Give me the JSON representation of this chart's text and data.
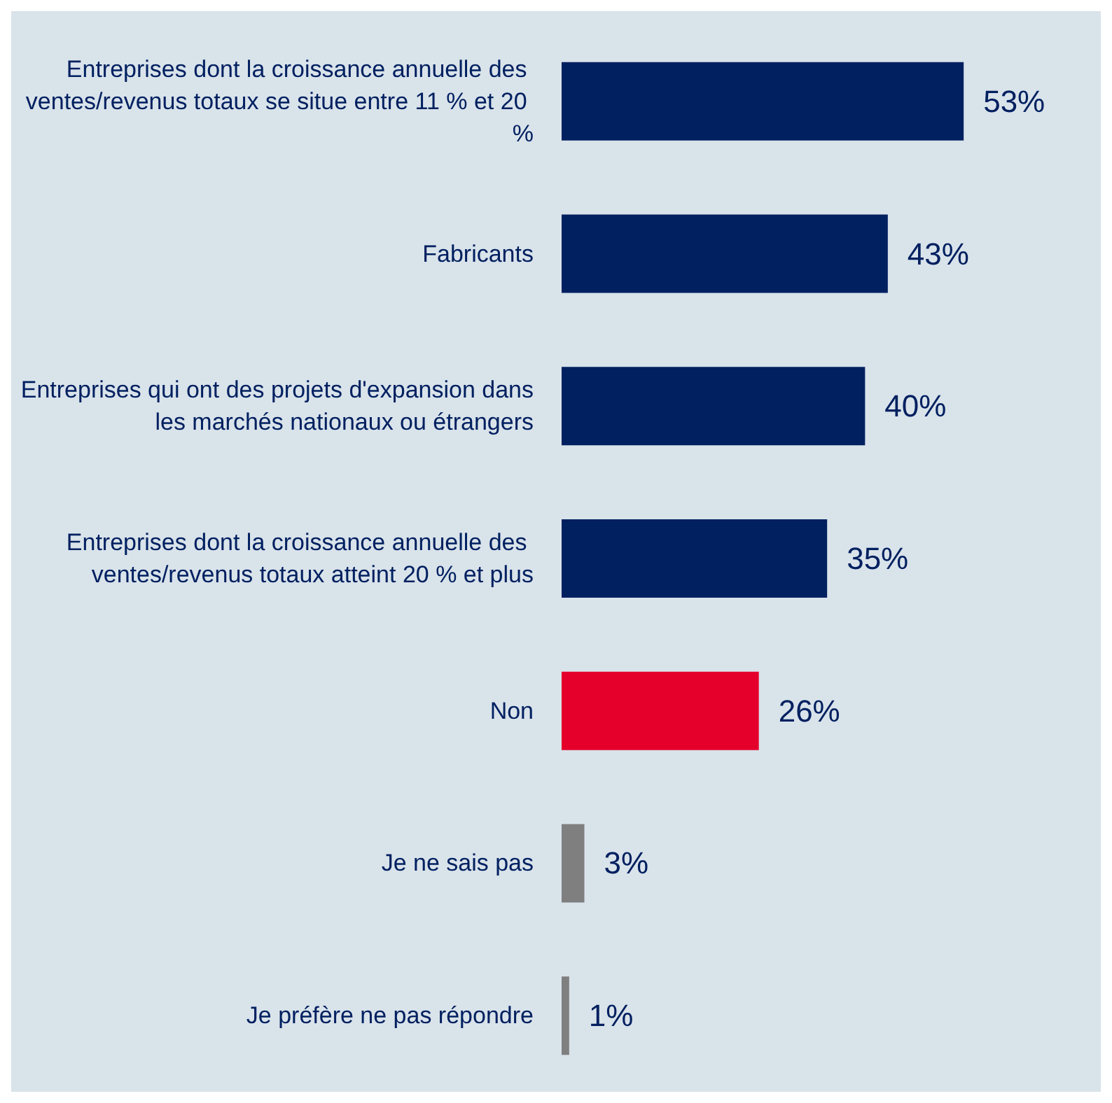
{
  "chart_data": {
    "type": "bar",
    "orientation": "horizontal",
    "categories": [
      "Entreprises dont la croissance annuelle des ventes/revenus totaux se situe entre 11 % et 20 %",
      "Fabricants",
      "Entreprises qui ont des projets d'expansion dans les marchés nationaux ou étrangers",
      "Entreprises dont la croissance annuelle des ventes/revenus totaux atteint 20 % et plus",
      "Non",
      "Je ne sais pas",
      "Je préfère ne pas répondre"
    ],
    "values": [
      53,
      43,
      40,
      35,
      26,
      3,
      1
    ],
    "value_labels": [
      "53%",
      "43%",
      "40%",
      "35%",
      "26%",
      "3%",
      "1%"
    ],
    "colors": [
      "#002060",
      "#002060",
      "#002060",
      "#002060",
      "#e4002b",
      "#7f7f7f",
      "#7f7f7f"
    ],
    "grid": false
  }
}
